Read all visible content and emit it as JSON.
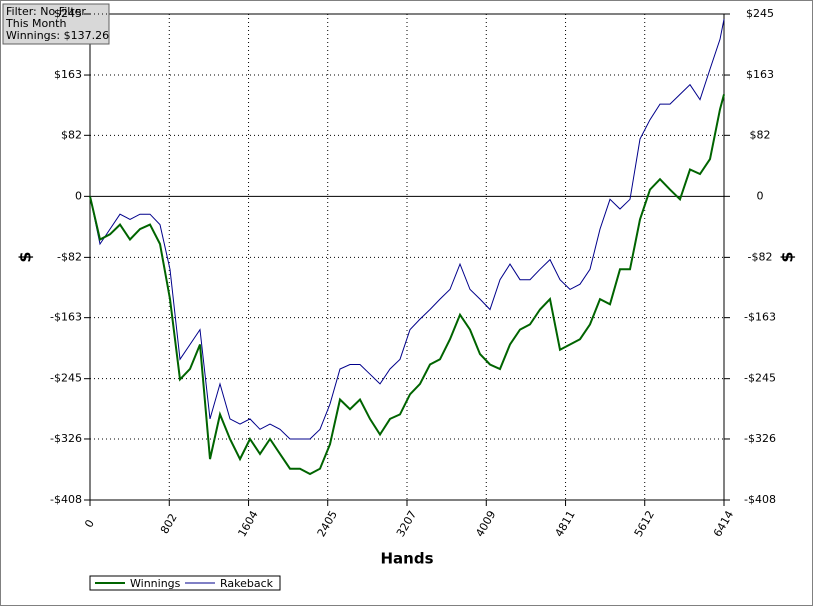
{
  "chart_data": {
    "type": "line",
    "annotations": [
      "Filter: No Filter",
      "This Month",
      "Winnings: $137.26"
    ],
    "xlabel": "Hands",
    "ylabel": "$",
    "x": [
      0,
      101,
      202,
      304,
      405,
      506,
      607,
      708,
      809,
      911,
      1012,
      1113,
      1214,
      1315,
      1416,
      1518,
      1619,
      1720,
      1821,
      1922,
      2023,
      2125,
      2226,
      2327,
      2428,
      2529,
      2630,
      2732,
      2833,
      2934,
      3035,
      3136,
      3237,
      3339,
      3440,
      3541,
      3642,
      3743,
      3844,
      3946,
      4047,
      4148,
      4249,
      4350,
      4451,
      4553,
      4654,
      4755,
      4856,
      4957,
      5058,
      5160,
      5261,
      5362,
      5463,
      5564,
      5665,
      5767,
      5868,
      5969,
      6070,
      6171,
      6272,
      6374,
      6414
    ],
    "series": [
      {
        "name": "Winnings",
        "color": "#006400",
        "values": [
          0,
          -58,
          -51,
          -38,
          -58,
          -44,
          -38,
          -64,
          -138,
          -246,
          -232,
          -199,
          -353,
          -293,
          -326,
          -353,
          -326,
          -346,
          -326,
          -346,
          -366,
          -366,
          -373,
          -366,
          -333,
          -273,
          -286,
          -273,
          -299,
          -320,
          -299,
          -293,
          -266,
          -252,
          -226,
          -219,
          -192,
          -159,
          -179,
          -212,
          -226,
          -232,
          -199,
          -179,
          -172,
          -152,
          -138,
          -206,
          -199,
          -192,
          -172,
          -138,
          -145,
          -98,
          -98,
          -31,
          9,
          23,
          9,
          -4,
          36,
          30,
          50,
          117,
          137
        ]
      },
      {
        "name": "Rakeback",
        "color": "#00008b",
        "values": [
          0,
          -64,
          -44,
          -24,
          -31,
          -24,
          -24,
          -38,
          -98,
          -219,
          -199,
          -179,
          -299,
          -252,
          -299,
          -306,
          -299,
          -313,
          -306,
          -313,
          -326,
          -326,
          -326,
          -313,
          -279,
          -232,
          -226,
          -226,
          -239,
          -252,
          -232,
          -219,
          -179,
          -165,
          -152,
          -138,
          -125,
          -91,
          -125,
          -138,
          -152,
          -112,
          -91,
          -112,
          -112,
          -98,
          -85,
          -112,
          -125,
          -118,
          -98,
          -44,
          -4,
          -17,
          -4,
          77,
          103,
          124,
          124,
          137,
          150,
          130,
          171,
          211,
          238
        ]
      }
    ],
    "xlim": [
      0,
      6414
    ],
    "xticks": [
      0,
      802,
      1604,
      2405,
      3207,
      4009,
      4811,
      5612,
      6414
    ],
    "ylim": [
      -408,
      245
    ],
    "yticks": [
      {
        "value": -408,
        "label": "-$408"
      },
      {
        "value": -326,
        "label": "-$326"
      },
      {
        "value": -245,
        "label": "-$245"
      },
      {
        "value": -163,
        "label": "-$163"
      },
      {
        "value": -82,
        "label": "-$82"
      },
      {
        "value": 0,
        "label": "0"
      },
      {
        "value": 82,
        "label": "$82"
      },
      {
        "value": 163,
        "label": "$163"
      },
      {
        "value": 245,
        "label": "$245"
      }
    ],
    "grid": true
  }
}
